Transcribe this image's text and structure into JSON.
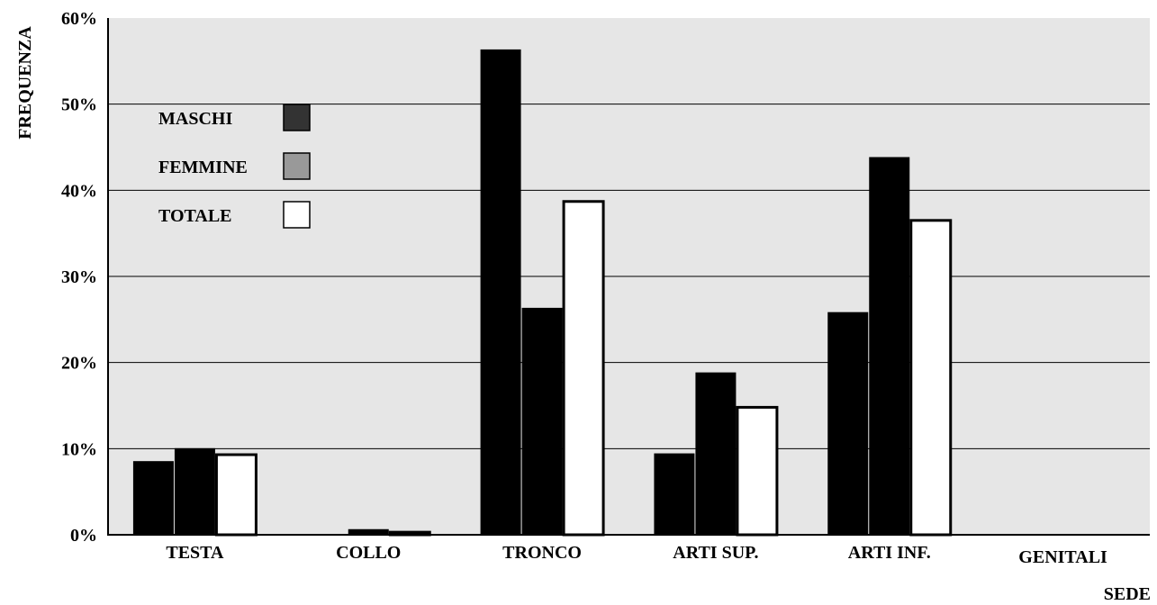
{
  "chart_data": {
    "type": "bar",
    "ylabel": "FREQUENZA",
    "xlabel": "SEDE",
    "ylim": [
      0,
      60
    ],
    "y_ticks": [
      {
        "value": 0,
        "label": "0%"
      },
      {
        "value": 10,
        "label": "10%"
      },
      {
        "value": 20,
        "label": "20%"
      },
      {
        "value": 30,
        "label": "30%"
      },
      {
        "value": 40,
        "label": "40%"
      },
      {
        "value": 50,
        "label": "50%"
      },
      {
        "value": 60,
        "label": "60%"
      }
    ],
    "categories": [
      "TESTA",
      "COLLO",
      "TRONCO",
      "ARTI SUP.",
      "ARTI INF.",
      "GENITALI"
    ],
    "series": [
      {
        "name": "MASCHI",
        "color": "#000000",
        "values": [
          8.5,
          0,
          56.3,
          9.4,
          25.8,
          0
        ]
      },
      {
        "name": "FEMMINE",
        "color": "#000000",
        "values": [
          10,
          0.6,
          26.3,
          18.8,
          43.8,
          0
        ]
      },
      {
        "name": "TOTALE",
        "color": "#ffffff",
        "values": [
          9.3,
          0.3,
          38.7,
          14.8,
          36.5,
          0
        ]
      }
    ],
    "legend": {
      "position": "top-left",
      "items": [
        {
          "label": "MASCHI",
          "color": "#333333"
        },
        {
          "label": "FEMMINE",
          "color": "#999999"
        },
        {
          "label": "TOTALE",
          "color": "#ffffff"
        }
      ]
    },
    "plot_background": "#e6e6e6",
    "grid": true
  }
}
